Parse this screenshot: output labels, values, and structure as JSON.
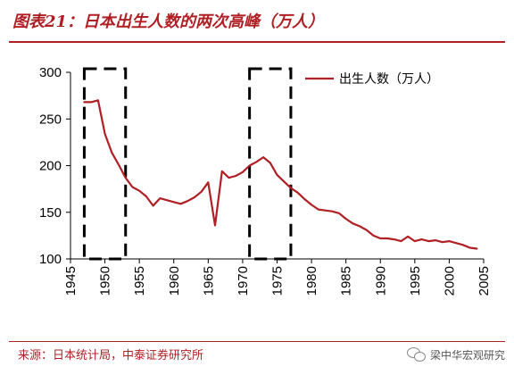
{
  "header": {
    "title": "图表21：日本出生人数的两次高峰（万人）"
  },
  "footer": {
    "source": "来源：日本统计局，中泰证券研究所",
    "watermark": "梁中华宏观研究",
    "watermark_icon": "wechat-icon"
  },
  "chart_data": {
    "type": "line",
    "title": "",
    "xlabel": "",
    "ylabel": "",
    "xlim": [
      1945,
      2005
    ],
    "ylim": [
      100,
      300
    ],
    "x_ticks": [
      1945,
      1950,
      1955,
      1960,
      1965,
      1970,
      1975,
      1980,
      1985,
      1990,
      1995,
      2000,
      2005
    ],
    "y_ticks": [
      100,
      150,
      200,
      250,
      300
    ],
    "grid": false,
    "legend_position": "top-right",
    "series": [
      {
        "name": "出生人数（万人）",
        "color": "#b01f24",
        "x": [
          1947,
          1948,
          1949,
          1950,
          1951,
          1952,
          1953,
          1954,
          1955,
          1956,
          1957,
          1958,
          1959,
          1960,
          1961,
          1962,
          1963,
          1964,
          1965,
          1966,
          1967,
          1968,
          1969,
          1970,
          1971,
          1972,
          1973,
          1974,
          1975,
          1976,
          1977,
          1978,
          1979,
          1980,
          1981,
          1982,
          1983,
          1984,
          1985,
          1986,
          1987,
          1988,
          1989,
          1990,
          1991,
          1992,
          1993,
          1994,
          1995,
          1996,
          1997,
          1998,
          1999,
          2000,
          2001,
          2002,
          2003,
          2004
        ],
        "values": [
          268,
          268,
          270,
          234,
          214,
          201,
          187,
          177,
          173,
          167,
          157,
          165,
          163,
          161,
          159,
          162,
          166,
          172,
          182,
          136,
          194,
          187,
          189,
          193,
          200,
          204,
          209,
          203,
          190,
          183,
          176,
          171,
          164,
          158,
          153,
          152,
          151,
          149,
          143,
          138,
          135,
          131,
          125,
          122,
          122,
          121,
          119,
          124,
          119,
          121,
          119,
          120,
          118,
          119,
          117,
          115,
          112,
          111
        ]
      }
    ],
    "annotations": [
      {
        "type": "dashed-box",
        "x_range": [
          1947,
          1953
        ],
        "y_range": [
          100,
          300
        ]
      },
      {
        "type": "dashed-box",
        "x_range": [
          1971,
          1977
        ],
        "y_range": [
          100,
          300
        ]
      }
    ]
  }
}
